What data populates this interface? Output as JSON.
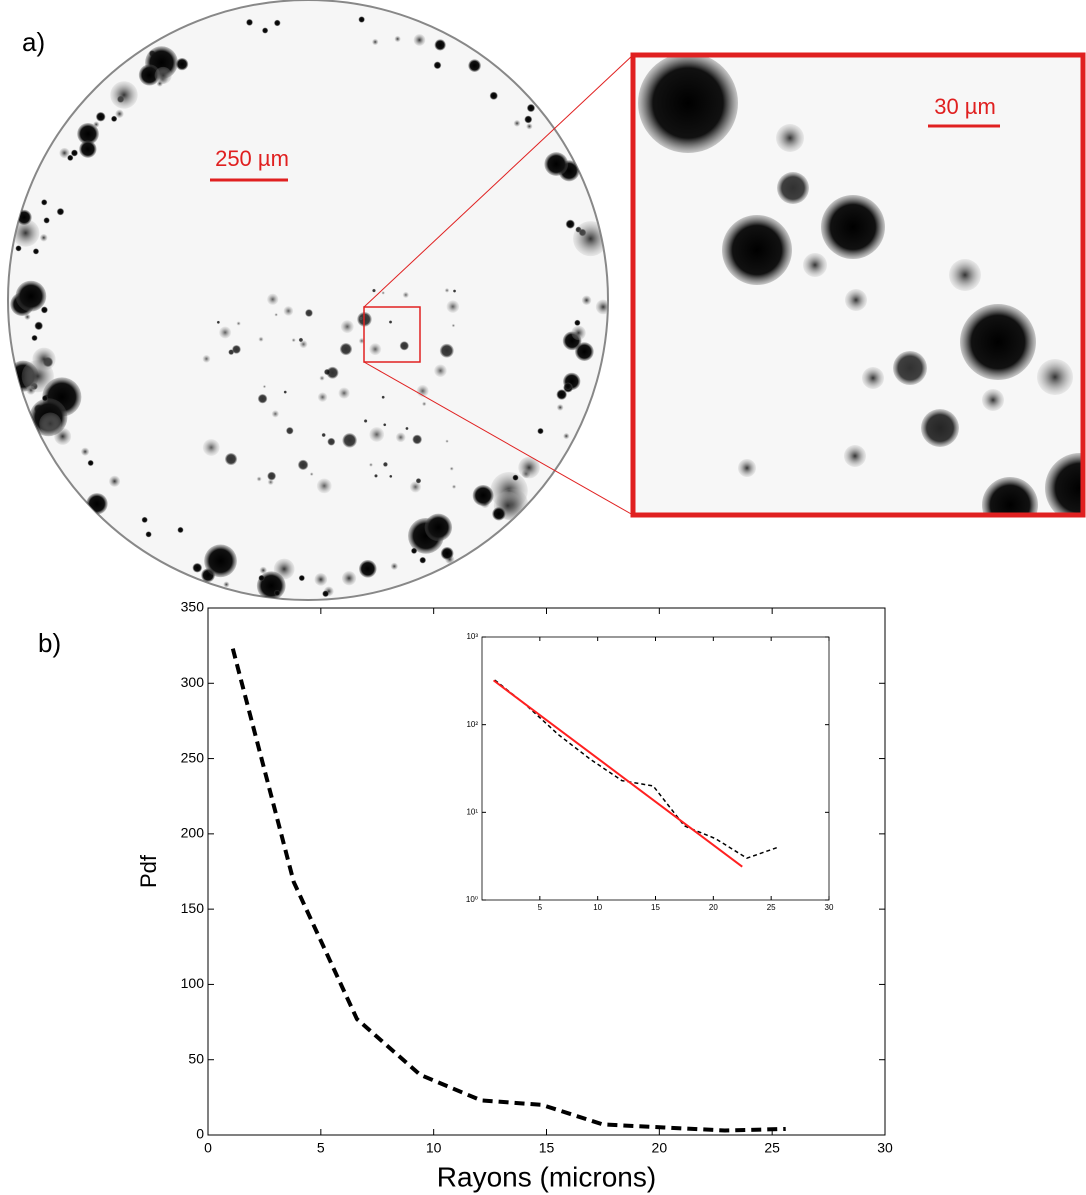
{
  "panel_a": {
    "label": "a)",
    "scale_bar_main": "250 µm",
    "scale_bar_zoom": "30 µm"
  },
  "panel_b": {
    "label": "b)"
  },
  "chart_data": [
    {
      "type": "line",
      "xlabel": "Rayons (microns)",
      "ylabel": "Pdf",
      "xlim": [
        0,
        30
      ],
      "ylim": [
        0,
        350
      ],
      "xticks": [
        0,
        5,
        10,
        15,
        20,
        25,
        30
      ],
      "yticks": [
        0,
        50,
        100,
        150,
        200,
        250,
        300,
        350
      ],
      "series": [
        {
          "color": "#000000",
          "line_style": "dashed",
          "x": [
            1.1,
            3.8,
            6.6,
            9.4,
            12.1,
            14.8,
            17.5,
            20.2,
            22.9,
            25.6
          ],
          "values": [
            323,
            168,
            77,
            40,
            23,
            20,
            7,
            5,
            3,
            4
          ]
        }
      ]
    },
    {
      "type": "line",
      "y_scale": "log",
      "xlim": [
        0,
        30
      ],
      "ylim": [
        1,
        1000
      ],
      "xticks": [
        5,
        10,
        15,
        20,
        25,
        30
      ],
      "yticks": [
        {
          "value": 1,
          "label": "10⁰"
        },
        {
          "value": 10,
          "label": "10¹"
        },
        {
          "value": 100,
          "label": "10²"
        },
        {
          "value": 1000,
          "label": "10³"
        }
      ],
      "series": [
        {
          "color": "#000000",
          "line_style": "dashed",
          "x": [
            1.1,
            3.8,
            6.6,
            9.4,
            12.1,
            14.8,
            17.5,
            20.2,
            22.9,
            25.6
          ],
          "values": [
            323,
            168,
            77,
            40,
            23,
            20,
            7,
            5,
            3,
            4
          ]
        },
        {
          "color": "#ff2020",
          "line_style": "solid",
          "x": [
            1,
            22.5
          ],
          "values": [
            320,
            2.4
          ]
        }
      ]
    }
  ]
}
